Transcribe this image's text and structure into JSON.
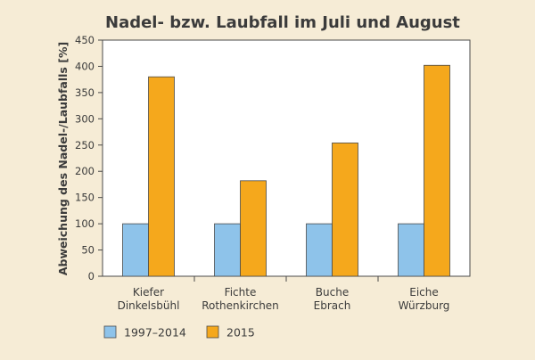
{
  "chart_data": {
    "type": "bar",
    "title": "Nadel- bzw. Laubfall im Juli und August",
    "xlabel": "",
    "ylabel": "Abweichung des Nadel-/Laubfalls [%]",
    "ylim": [
      0,
      450
    ],
    "yticks": [
      0,
      50,
      100,
      150,
      200,
      250,
      300,
      350,
      400,
      450
    ],
    "grid": false,
    "legend_position": "bottom-left",
    "categories": [
      {
        "line1": "Kiefer",
        "line2": "Dinkelsbühl"
      },
      {
        "line1": "Fichte",
        "line2": "Rothenkirchen"
      },
      {
        "line1": "Buche",
        "line2": "Ebrach"
      },
      {
        "line1": "Eiche",
        "line2": "Würzburg"
      }
    ],
    "series": [
      {
        "name": "1997–2014",
        "color": "#8ec3ea",
        "values": [
          100,
          100,
          100,
          100
        ]
      },
      {
        "name": "2015",
        "color": "#f5a81c",
        "values": [
          380,
          182,
          254,
          402
        ]
      }
    ]
  },
  "colors": {
    "background": "#f6ecd6",
    "plot_background": "#ffffff",
    "axis": "#4a4a4a",
    "text": "#3b3b3b"
  }
}
